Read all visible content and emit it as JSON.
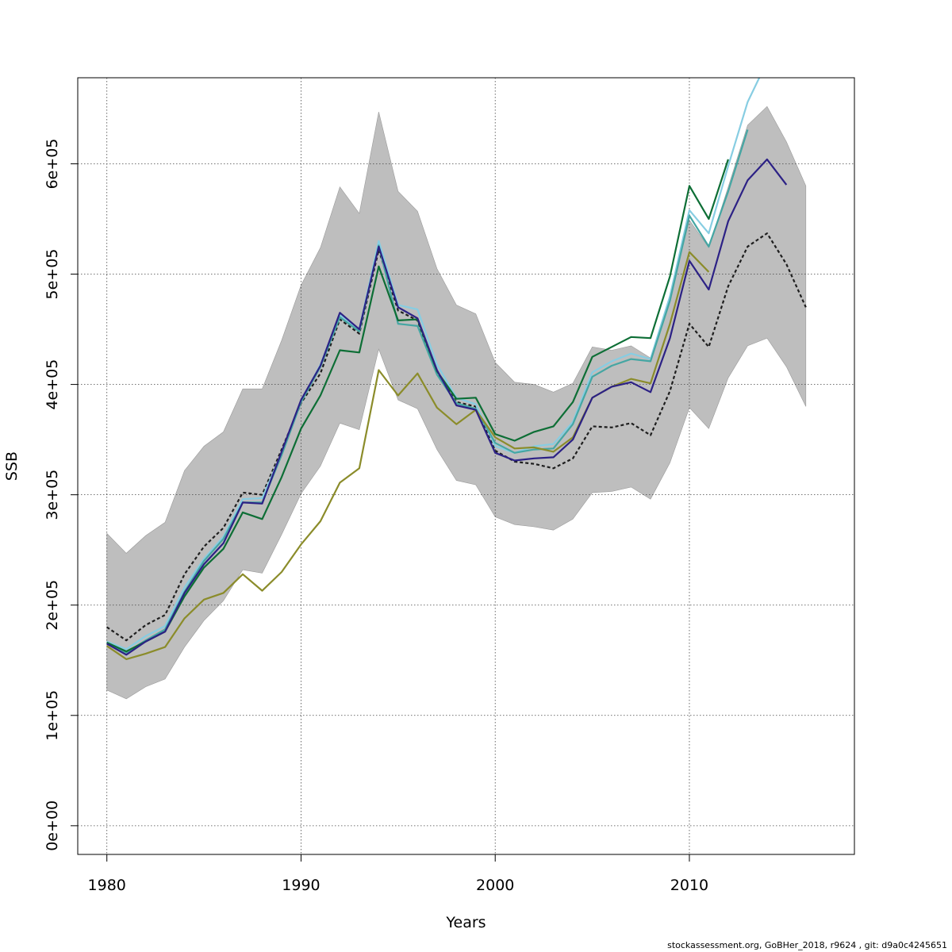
{
  "chart_data": {
    "type": "line",
    "xlabel": "Years",
    "ylabel": "SSB",
    "xlim": [
      1978.5,
      2018.5
    ],
    "ylim": [
      -26000,
      678000
    ],
    "x_ticks": [
      1980,
      1990,
      2000,
      2010
    ],
    "x_tick_labels": [
      "1980",
      "1990",
      "2000",
      "2010"
    ],
    "y_ticks": [
      0,
      100000,
      200000,
      300000,
      400000,
      500000,
      600000
    ],
    "y_tick_labels": [
      "0e+00",
      "1e+05",
      "2e+05",
      "3e+05",
      "4e+05",
      "5e+05",
      "6e+05"
    ],
    "grid": true,
    "band": {
      "color": "#bebebe",
      "x": [
        1980,
        1981,
        1982,
        1983,
        1984,
        1985,
        1986,
        1987,
        1988,
        1989,
        1990,
        1991,
        1992,
        1993,
        1994,
        1995,
        1996,
        1997,
        1998,
        1999,
        2000,
        2001,
        2002,
        2003,
        2004,
        2005,
        2006,
        2007,
        2008,
        2009,
        2010,
        2011,
        2012,
        2013,
        2014,
        2015,
        2016
      ],
      "upper": [
        265000,
        247000,
        263000,
        275000,
        322000,
        344000,
        357000,
        396000,
        396000,
        440000,
        490000,
        524000,
        579000,
        555000,
        647000,
        575000,
        557000,
        505000,
        472000,
        464000,
        420000,
        402000,
        400000,
        393000,
        401000,
        434000,
        431000,
        435000,
        424000,
        478000,
        549000,
        524000,
        579000,
        635000,
        652000,
        620000,
        580000
      ],
      "lower": [
        123000,
        115000,
        126000,
        133000,
        162000,
        186000,
        204000,
        232000,
        229000,
        264000,
        301000,
        326000,
        365000,
        359000,
        432000,
        386000,
        378000,
        341000,
        313000,
        309000,
        280000,
        273000,
        271000,
        268000,
        278000,
        302000,
        303000,
        307000,
        296000,
        329000,
        379000,
        360000,
        406000,
        435000,
        442000,
        416000,
        380000
      ]
    },
    "series": [
      {
        "color": "#1e1e1e",
        "dashed": true,
        "x": [
          1980,
          1981,
          1982,
          1983,
          1984,
          1985,
          1986,
          1987,
          1988,
          1989,
          1990,
          1991,
          1992,
          1993,
          1994,
          1995,
          1996,
          1997,
          1998,
          1999,
          2000,
          2001,
          2002,
          2003,
          2004,
          2005,
          2006,
          2007,
          2008,
          2009,
          2010,
          2011,
          2012,
          2013,
          2014,
          2015,
          2016
        ],
        "values": [
          180000,
          168000,
          182000,
          191000,
          228000,
          253000,
          270000,
          302000,
          300000,
          341000,
          383000,
          410000,
          459000,
          446000,
          522000,
          467000,
          458000,
          410000,
          384000,
          380000,
          340000,
          330000,
          328000,
          324000,
          333000,
          362000,
          361000,
          365000,
          354000,
          394000,
          455000,
          434000,
          489000,
          525000,
          537000,
          509000,
          470000
        ]
      },
      {
        "color": "#87cde2",
        "dashed": false,
        "x": [
          1980,
          1981,
          1982,
          1983,
          1984,
          1985,
          1986,
          1987,
          1988,
          1989,
          1990,
          1991,
          1992,
          1993,
          1994,
          1995,
          1996,
          1997,
          1998,
          1999,
          2000,
          2001,
          2002,
          2003,
          2004,
          2005,
          2006,
          2007,
          2008,
          2009,
          2010,
          2011,
          2012,
          2013,
          2013.6
        ],
        "values": [
          167000,
          160000,
          172000,
          181000,
          216000,
          242000,
          262000,
          296000,
          297000,
          338000,
          385000,
          418000,
          463000,
          450000,
          530000,
          472000,
          468000,
          418000,
          388000,
          382000,
          344000,
          338000,
          344000,
          346000,
          366000,
          411000,
          421000,
          428000,
          423000,
          480000,
          558000,
          537000,
          598000,
          656000,
          678000
        ]
      },
      {
        "color": "#45a6a3",
        "dashed": false,
        "x": [
          1980,
          1981,
          1982,
          1983,
          1984,
          1985,
          1986,
          1987,
          1988,
          1989,
          1990,
          1991,
          1992,
          1993,
          1994,
          1995,
          1996,
          1997,
          1998,
          1999,
          2000,
          2001,
          2002,
          2003,
          2004,
          2005,
          2006,
          2007,
          2008,
          2009,
          2010,
          2011,
          2012,
          2013
        ],
        "values": [
          166000,
          157000,
          168000,
          178000,
          212000,
          240000,
          260000,
          293000,
          293000,
          336000,
          384000,
          416000,
          461000,
          448000,
          526000,
          455000,
          453000,
          409000,
          383000,
          378000,
          347000,
          338000,
          341000,
          342000,
          364000,
          407000,
          417000,
          423000,
          421000,
          476000,
          553000,
          525000,
          575000,
          631000
        ]
      },
      {
        "color": "#8b8c2a",
        "dashed": false,
        "x": [
          1980,
          1981,
          1982,
          1983,
          1984,
          1985,
          1986,
          1987,
          1988,
          1989,
          1990,
          1991,
          1992,
          1993,
          1994,
          1995,
          1996,
          1997,
          1998,
          1999,
          2000,
          2001,
          2002,
          2003,
          2004,
          2005,
          2006,
          2007,
          2008,
          2009,
          2010,
          2011
        ],
        "values": [
          163000,
          151000,
          156000,
          162000,
          188000,
          205000,
          211000,
          228000,
          213000,
          230000,
          255000,
          276000,
          311000,
          324000,
          413000,
          390000,
          410000,
          379000,
          364000,
          377000,
          352000,
          342000,
          343000,
          339000,
          352000,
          388000,
          398000,
          405000,
          401000,
          455000,
          520000,
          502000
        ]
      },
      {
        "color": "#0d6e35",
        "dashed": false,
        "x": [
          1980,
          1981,
          1982,
          1983,
          1984,
          1985,
          1986,
          1987,
          1988,
          1989,
          1990,
          1991,
          1992,
          1993,
          1994,
          1995,
          1996,
          1997,
          1998,
          1999,
          2000,
          2001,
          2002,
          2003,
          2004,
          2005,
          2006,
          2007,
          2008,
          2009,
          2010,
          2011,
          2012
        ],
        "values": [
          166000,
          158000,
          167000,
          176000,
          208000,
          234000,
          251000,
          284000,
          278000,
          316000,
          360000,
          390000,
          431000,
          429000,
          507000,
          458000,
          459000,
          412000,
          387000,
          388000,
          355000,
          349000,
          357000,
          362000,
          384000,
          425000,
          434000,
          443000,
          442000,
          498000,
          580000,
          550000,
          604000
        ]
      },
      {
        "color": "#2c2185",
        "dashed": false,
        "x": [
          1980,
          1981,
          1982,
          1983,
          1984,
          1985,
          1986,
          1987,
          1988,
          1989,
          1990,
          1991,
          1992,
          1993,
          1994,
          1995,
          1996,
          1997,
          1998,
          1999,
          2000,
          2001,
          2002,
          2003,
          2004,
          2005,
          2006,
          2007,
          2008,
          2009,
          2010,
          2011,
          2012,
          2013,
          2014,
          2015
        ],
        "values": [
          165000,
          155000,
          167000,
          176000,
          211000,
          237000,
          256000,
          293000,
          292000,
          339000,
          386000,
          417000,
          465000,
          450000,
          525000,
          470000,
          460000,
          413000,
          381000,
          377000,
          338000,
          331000,
          333000,
          334000,
          350000,
          388000,
          398000,
          402000,
          393000,
          442000,
          512000,
          486000,
          548000,
          585000,
          604000,
          581000
        ]
      }
    ]
  },
  "footer": "stockassessment.org, GoBHer_2018, r9624 , git: d9a0c4245651"
}
